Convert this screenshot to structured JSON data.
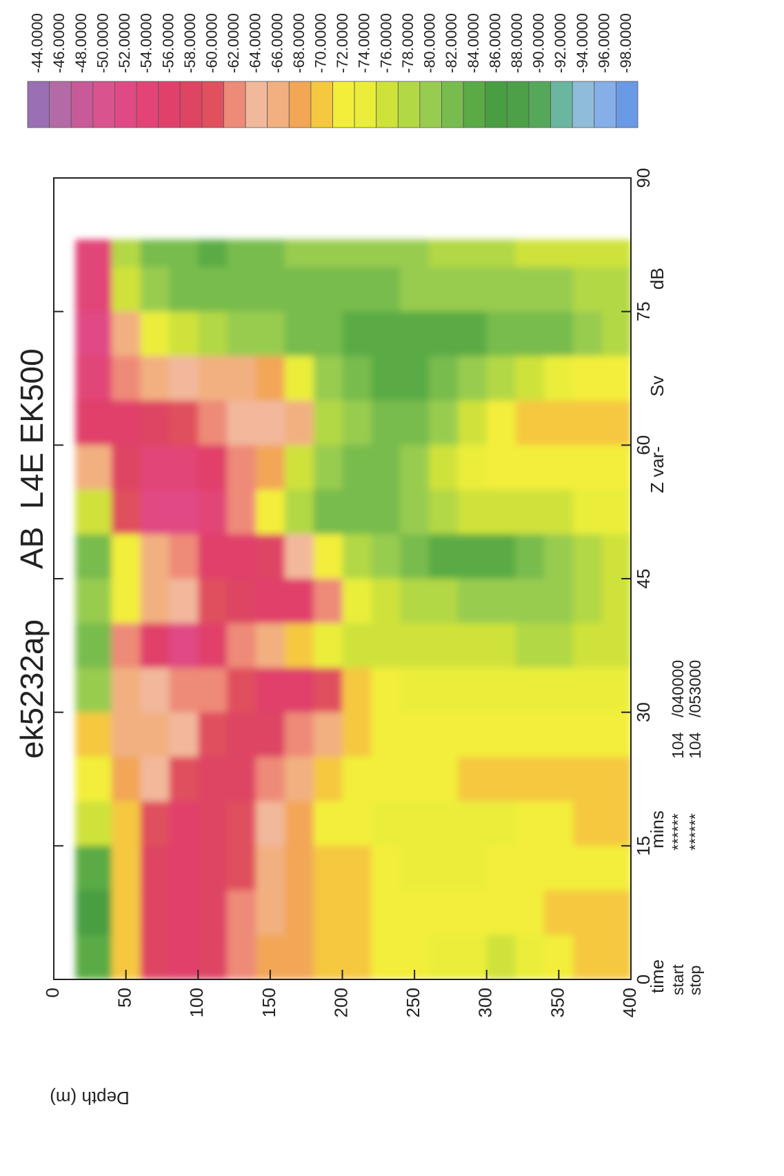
{
  "chart_data": {
    "type": "heatmap",
    "title": "ek5232ap",
    "subtitle": "AB  L4E EK500",
    "y_label": "Depth (m)",
    "xlim": [
      0,
      90
    ],
    "xticks": [
      0,
      15,
      30,
      45,
      60,
      75,
      90
    ],
    "ylim": [
      0,
      400
    ],
    "yticks": [
      0,
      50,
      100,
      150,
      200,
      250,
      300,
      350,
      400
    ],
    "y_inverted": true,
    "xbins": [
      0,
      5,
      10,
      15,
      20,
      25,
      30,
      35,
      40,
      45,
      50,
      55,
      60,
      65,
      70,
      75,
      80,
      83
    ],
    "ybins": [
      15,
      40,
      60,
      80,
      100,
      120,
      140,
      160,
      180,
      200,
      220,
      240,
      260,
      280,
      300,
      320,
      340,
      360,
      380,
      400
    ],
    "values": [
      [
        -84,
        -86,
        -84,
        -76,
        -72,
        -70,
        -80,
        -82,
        -80,
        -82,
        -76,
        -66,
        -56,
        -54,
        -52,
        -54,
        -54
      ],
      [
        -70,
        -70,
        -70,
        -70,
        -68,
        -66,
        -66,
        -62,
        -72,
        -72,
        -60,
        -58,
        -56,
        -62,
        -66,
        -76,
        -78
      ],
      [
        -58,
        -58,
        -58,
        -60,
        -64,
        -66,
        -64,
        -56,
        -66,
        -66,
        -52,
        -54,
        -58,
        -66,
        -74,
        -80,
        -82
      ],
      [
        -56,
        -56,
        -56,
        -56,
        -60,
        -64,
        -62,
        -52,
        -64,
        -62,
        -52,
        -54,
        -60,
        -64,
        -76,
        -82,
        -82
      ],
      [
        -58,
        -58,
        -58,
        -58,
        -58,
        -60,
        -62,
        -56,
        -60,
        -56,
        -54,
        -56,
        -62,
        -66,
        -78,
        -82,
        -84
      ],
      [
        -62,
        -62,
        -60,
        -60,
        -58,
        -58,
        -60,
        -62,
        -58,
        -56,
        -62,
        -62,
        -64,
        -66,
        -80,
        -82,
        -82
      ],
      [
        -68,
        -66,
        -66,
        -64,
        -62,
        -58,
        -56,
        -66,
        -56,
        -58,
        -72,
        -68,
        -64,
        -68,
        -80,
        -82,
        -82
      ],
      [
        -68,
        -68,
        -68,
        -68,
        -66,
        -62,
        -56,
        -70,
        -56,
        -64,
        -78,
        -76,
        -66,
        -74,
        -82,
        -82,
        -80
      ],
      [
        -70,
        -70,
        -70,
        -72,
        -70,
        -66,
        -60,
        -74,
        -62,
        -72,
        -82,
        -80,
        -78,
        -80,
        -82,
        -82,
        -80
      ],
      [
        -70,
        -70,
        -70,
        -72,
        -72,
        -70,
        -70,
        -76,
        -74,
        -78,
        -82,
        -82,
        -80,
        -82,
        -84,
        -82,
        -80
      ],
      [
        -72,
        -72,
        -72,
        -74,
        -72,
        -72,
        -72,
        -76,
        -76,
        -80,
        -82,
        -82,
        -82,
        -84,
        -84,
        -82,
        -80
      ],
      [
        -72,
        -72,
        -74,
        -74,
        -72,
        -72,
        -74,
        -76,
        -78,
        -82,
        -80,
        -80,
        -82,
        -84,
        -84,
        -80,
        -80
      ],
      [
        -74,
        -72,
        -74,
        -74,
        -72,
        -72,
        -74,
        -76,
        -78,
        -84,
        -78,
        -76,
        -80,
        -82,
        -84,
        -80,
        -78
      ],
      [
        -74,
        -72,
        -74,
        -74,
        -70,
        -72,
        -74,
        -76,
        -80,
        -84,
        -76,
        -74,
        -76,
        -80,
        -84,
        -80,
        -78
      ],
      [
        -76,
        -72,
        -72,
        -74,
        -70,
        -72,
        -74,
        -76,
        -80,
        -84,
        -76,
        -72,
        -72,
        -78,
        -82,
        -80,
        -78
      ],
      [
        -74,
        -72,
        -72,
        -72,
        -70,
        -72,
        -74,
        -78,
        -80,
        -82,
        -76,
        -72,
        -70,
        -76,
        -82,
        -80,
        -76
      ],
      [
        -72,
        -70,
        -72,
        -72,
        -70,
        -72,
        -74,
        -78,
        -80,
        -80,
        -76,
        -72,
        -70,
        -74,
        -82,
        -80,
        -76
      ],
      [
        -70,
        -70,
        -72,
        -70,
        -70,
        -72,
        -74,
        -76,
        -78,
        -78,
        -74,
        -72,
        -70,
        -72,
        -80,
        -78,
        -76
      ],
      [
        -70,
        -70,
        -72,
        -70,
        -70,
        -72,
        -74,
        -76,
        -76,
        -76,
        -74,
        -72,
        -70,
        -72,
        -78,
        -78,
        -76
      ]
    ],
    "levels": [
      {
        "value": -44,
        "label": "-44.0000"
      },
      {
        "value": -46,
        "label": "-46.0000"
      },
      {
        "value": -48,
        "label": "-48.0000"
      },
      {
        "value": -50,
        "label": "-50.0000"
      },
      {
        "value": -52,
        "label": "-52.0000"
      },
      {
        "value": -54,
        "label": "-54.0000"
      },
      {
        "value": -56,
        "label": "-56.0000"
      },
      {
        "value": -58,
        "label": "-58.0000"
      },
      {
        "value": -60,
        "label": "-60.0000"
      },
      {
        "value": -62,
        "label": "-62.0000"
      },
      {
        "value": -64,
        "label": "-64.0000"
      },
      {
        "value": -66,
        "label": "-66.0000"
      },
      {
        "value": -68,
        "label": "-68.0000"
      },
      {
        "value": -70,
        "label": "-70.0000"
      },
      {
        "value": -72,
        "label": "-72.0000"
      },
      {
        "value": -74,
        "label": "-74.0000"
      },
      {
        "value": -76,
        "label": "-76.0000"
      },
      {
        "value": -78,
        "label": "-78.0000"
      },
      {
        "value": -80,
        "label": "-80.0000"
      },
      {
        "value": -82,
        "label": "-82.0000"
      },
      {
        "value": -84,
        "label": "-84.0000"
      },
      {
        "value": -86,
        "label": "-86.0000"
      },
      {
        "value": -88,
        "label": "-88.0000"
      },
      {
        "value": -90,
        "label": "-90.0000"
      },
      {
        "value": -92,
        "label": "-92.0000"
      },
      {
        "value": -94,
        "label": "-94.0000"
      },
      {
        "value": -96,
        "label": "-96.0000"
      },
      {
        "value": -98,
        "label": "-98.0000"
      }
    ],
    "colors": [
      "#9b6fb3",
      "#b46aa6",
      "#c95a9a",
      "#d9548f",
      "#e04a84",
      "#e24477",
      "#e0416b",
      "#de4563",
      "#e0505d",
      "#ee8a78",
      "#f2b89c",
      "#f2b080",
      "#f2a656",
      "#f5c840",
      "#f3ee3a",
      "#eaee3a",
      "#cfe23a",
      "#b2d845",
      "#98cc50",
      "#78bc4e",
      "#5aab45",
      "#4a9e42",
      "#4da048",
      "#55a85a",
      "#6ab6a0",
      "#8fbcd8",
      "#86aee8",
      "#6a9ae6"
    ],
    "axis_footer": [
      "time",
      "mins",
      "Z var-",
      "Sv",
      "dB"
    ],
    "start_row": [
      "start",
      "******",
      "104",
      "/040000"
    ],
    "stop_row": [
      "stop",
      "******",
      "104",
      "/053000"
    ]
  }
}
